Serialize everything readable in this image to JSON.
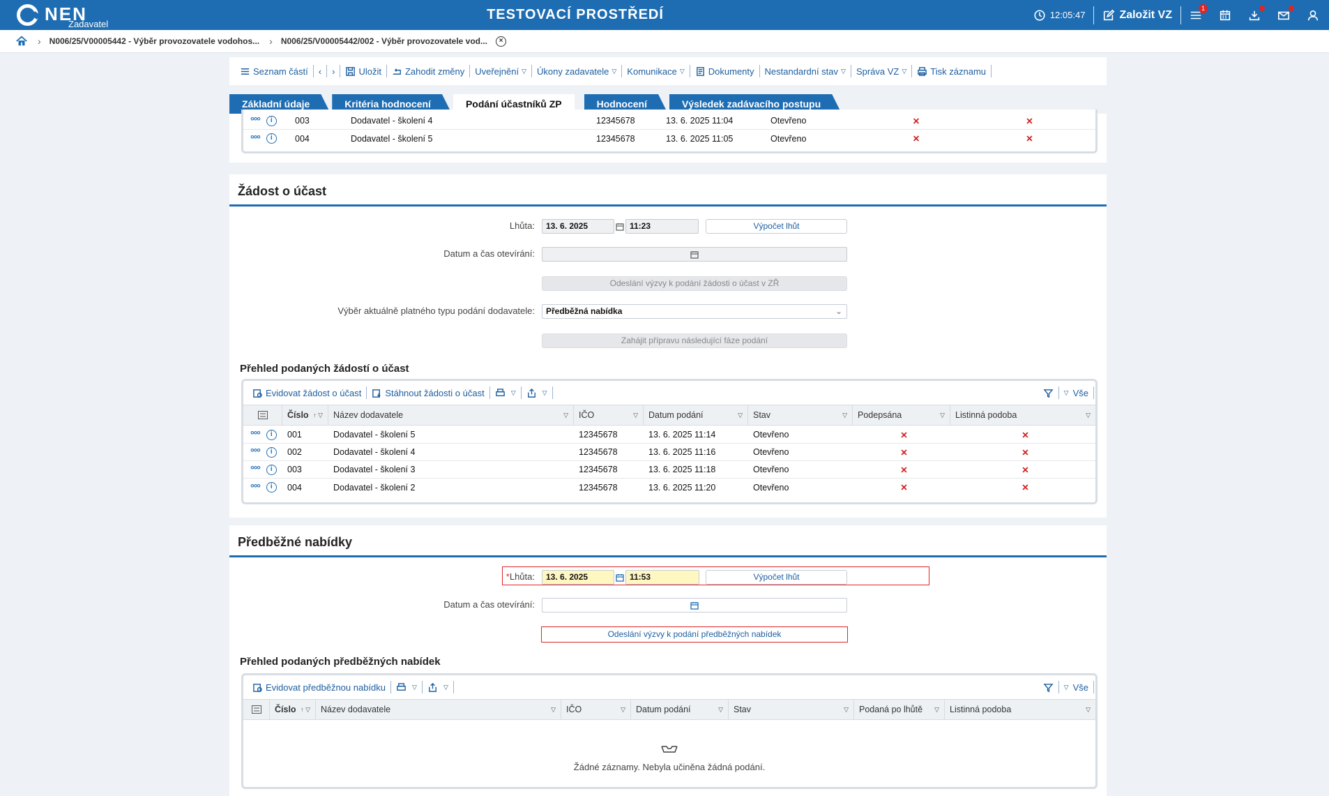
{
  "app": {
    "logo_text": "NEN",
    "logo_sub": "Zadavatel",
    "env_title": "TESTOVACÍ PROSTŘEDÍ",
    "clock": "12:05:47",
    "create_btn": "Založit VZ",
    "menu_badge": "1"
  },
  "breadcrumb": {
    "item1": "N006/25/V00005442 - Výběr provozovatele vodohos...",
    "item2": "N006/25/V00005442/002 - Výběr provozovatele vod..."
  },
  "toolbar": {
    "parts_list": "Seznam částí",
    "save": "Uložit",
    "discard": "Zahodit změny",
    "publish": "Uveřejnění",
    "actions": "Úkony zadavatele",
    "communication": "Komunikace",
    "documents": "Dokumenty",
    "nonstandard": "Nestandardní stav",
    "admin": "Správa VZ",
    "print": "Tisk záznamu"
  },
  "tabs": [
    {
      "label": "Základní údaje"
    },
    {
      "label": "Kritéria hodnocení"
    },
    {
      "label": "Podání účastníků ZP"
    },
    {
      "label": "Hodnocení"
    },
    {
      "label": "Výsledek zadávacího postupu"
    }
  ],
  "top_rows": [
    {
      "num": "003",
      "name": "Dodavatel - školení 4",
      "ico": "12345678",
      "date": "13. 6. 2025 11:04",
      "state": "Otevřeno"
    },
    {
      "num": "004",
      "name": "Dodavatel - školení 5",
      "ico": "12345678",
      "date": "13. 6. 2025 11:05",
      "state": "Otevřeno"
    }
  ],
  "zadost": {
    "title": "Žádost o účast",
    "lhuta_label": "Lhůta:",
    "lhuta_date": "13. 6. 2025",
    "lhuta_time": "11:23",
    "vypocet_btn": "Výpočet lhůt",
    "otevirani_label": "Datum a čas otevírání:",
    "odeslani_btn": "Odeslání výzvy k podání žádosti o účast v ZŘ",
    "typ_label": "Výběr aktuálně platného typu podání dodavatele:",
    "typ_value": "Předběžná nabídka",
    "zahajit_btn": "Zahájit přípravu následující fáze podání",
    "overview_title": "Přehled podaných žádostí o účast",
    "grid_btn_evidovat": "Evidovat žádost o účast",
    "grid_btn_stahnout": "Stáhnout žádosti o účast",
    "all_label": "Vše",
    "columns": [
      "Číslo",
      "Název dodavatele",
      "IČO",
      "Datum podání",
      "Stav",
      "Podepsána",
      "Listinná podoba"
    ],
    "rows": [
      {
        "num": "001",
        "name": "Dodavatel - školení 5",
        "ico": "12345678",
        "date": "13. 6. 2025 11:14",
        "state": "Otevřeno"
      },
      {
        "num": "002",
        "name": "Dodavatel - školení 4",
        "ico": "12345678",
        "date": "13. 6. 2025 11:16",
        "state": "Otevřeno"
      },
      {
        "num": "003",
        "name": "Dodavatel - školení 3",
        "ico": "12345678",
        "date": "13. 6. 2025 11:18",
        "state": "Otevřeno"
      },
      {
        "num": "004",
        "name": "Dodavatel - školení 2",
        "ico": "12345678",
        "date": "13. 6. 2025 11:20",
        "state": "Otevřeno"
      }
    ]
  },
  "predbezne": {
    "title": "Předběžné nabídky",
    "lhuta_label": "Lhůta:",
    "lhuta_date": "13. 6. 2025",
    "lhuta_time": "11:53",
    "vypocet_btn": "Výpočet lhůt",
    "otevirani_label": "Datum a čas otevírání:",
    "odeslani_btn": "Odeslání výzvy k podání předběžných nabídek",
    "overview_title": "Přehled podaných předběžných nabídek",
    "grid_btn_evidovat": "Evidovat předběžnou nabídku",
    "all_label": "Vše",
    "columns": [
      "Číslo",
      "Název dodavatele",
      "IČO",
      "Datum podání",
      "Stav",
      "Podaná po lhůtě",
      "Listinná podoba"
    ],
    "empty": "Žádné záznamy. Nebyla učiněna žádná podání."
  },
  "colors": {
    "brand": "#1e6db3",
    "error": "#e02424"
  }
}
